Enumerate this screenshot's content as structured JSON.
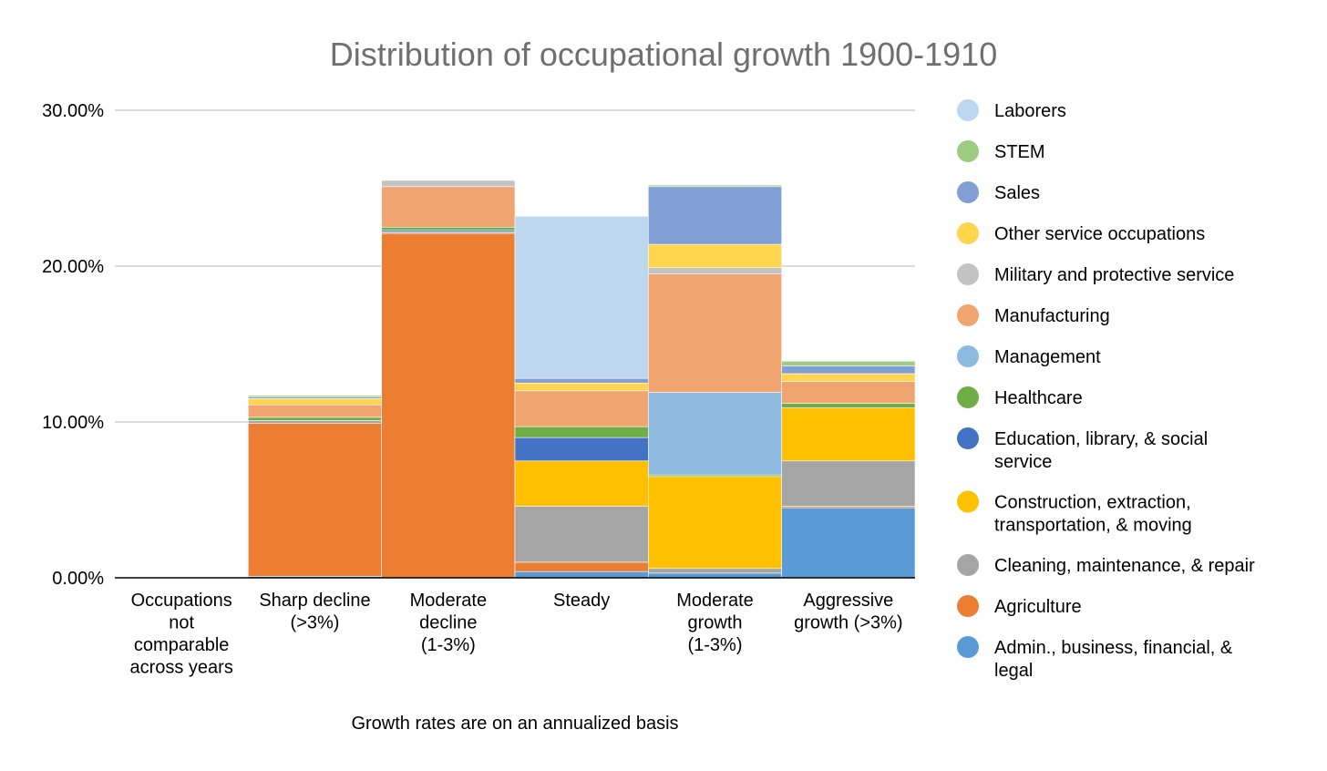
{
  "chart_data": {
    "type": "bar",
    "stacked": true,
    "title": "Distribution of occupational growth 1900-1910",
    "note": "Growth rates are on an annualized basis",
    "xlabel": "",
    "ylabel": "",
    "ylim": [
      0,
      30
    ],
    "yticks": [
      0,
      10,
      20,
      30
    ],
    "ytick_labels": [
      "0.00%",
      "10.00%",
      "20.00%",
      "30.00%"
    ],
    "grid": true,
    "legend_position": "right",
    "categories": [
      [
        "Occupations",
        "not",
        "comparable",
        "across years"
      ],
      [
        "Sharp decline",
        "(>3%)"
      ],
      [
        "Moderate",
        "decline",
        "(1-3%)"
      ],
      [
        "Steady"
      ],
      [
        "Moderate",
        "growth",
        "(1-3%)"
      ],
      [
        "Aggressive",
        "growth (>3%)"
      ]
    ],
    "series": [
      {
        "name": "Admin., business, financial, & legal",
        "legend_lines": [
          "Admin., business, financial, &",
          "legal"
        ],
        "color": "#5b9bd5",
        "values": [
          0,
          0.1,
          0,
          0.4,
          0.3,
          4.5
        ]
      },
      {
        "name": "Agriculture",
        "legend_lines": [
          "Agriculture"
        ],
        "color": "#ed7d31",
        "values": [
          0,
          9.8,
          22.1,
          0.6,
          0,
          0.1
        ]
      },
      {
        "name": "Cleaning, maintenance, & repair",
        "legend_lines": [
          "Cleaning, maintenance, & repair"
        ],
        "color": "#a5a5a5",
        "values": [
          0,
          0.2,
          0.1,
          3.6,
          0.3,
          2.9
        ]
      },
      {
        "name": "Construction, extraction, transportation, & moving",
        "legend_lines": [
          "Construction, extraction,",
          "transportation, & moving"
        ],
        "color": "#ffc000",
        "values": [
          0,
          0,
          0,
          2.9,
          5.9,
          3.4
        ]
      },
      {
        "name": "Education, library, & social service",
        "legend_lines": [
          "Education, library, & social",
          "service"
        ],
        "color": "#4472c4",
        "values": [
          0,
          0,
          0.1,
          1.5,
          0,
          0
        ]
      },
      {
        "name": "Healthcare",
        "legend_lines": [
          "Healthcare"
        ],
        "color": "#70ad47",
        "values": [
          0,
          0.2,
          0.2,
          0.7,
          0.1,
          0.3
        ]
      },
      {
        "name": "Management",
        "legend_lines": [
          "Management"
        ],
        "color": "#8fbae0",
        "values": [
          0,
          0,
          0,
          0,
          5.3,
          0
        ]
      },
      {
        "name": "Manufacturing",
        "legend_lines": [
          "Manufacturing"
        ],
        "color": "#f0a470",
        "values": [
          0,
          0.8,
          2.6,
          2.3,
          7.6,
          1.4
        ]
      },
      {
        "name": "Military and protective service",
        "legend_lines": [
          "Military and protective service"
        ],
        "color": "#c3c3c3",
        "values": [
          0,
          0,
          0.4,
          0,
          0.4,
          0
        ]
      },
      {
        "name": "Other service occupations",
        "legend_lines": [
          "Other service occupations"
        ],
        "color": "#ffd44f",
        "values": [
          0,
          0.4,
          0,
          0.5,
          1.5,
          0.5
        ]
      },
      {
        "name": "Sales",
        "legend_lines": [
          "Sales"
        ],
        "color": "#7f9fd5",
        "values": [
          0,
          0.1,
          0,
          0.3,
          3.7,
          0.5
        ]
      },
      {
        "name": "STEM",
        "legend_lines": [
          "STEM"
        ],
        "color": "#9ccb81",
        "values": [
          0,
          0.1,
          0,
          0,
          0.1,
          0.3
        ]
      },
      {
        "name": "Laborers",
        "legend_lines": [
          "Laborers"
        ],
        "color": "#bdd7ee",
        "values": [
          0,
          0,
          0,
          10.4,
          0,
          0
        ]
      }
    ]
  }
}
